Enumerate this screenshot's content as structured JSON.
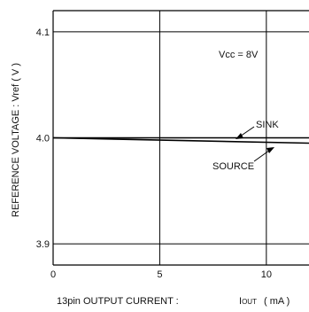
{
  "chart_data": {
    "type": "line",
    "title": "",
    "xlabel": "13pin  OUTPUT  CURRENT :",
    "xlabel_symbol": "I",
    "xlabel_subscript": "OUT",
    "xlabel_unit": "( mA )",
    "ylabel": "REFERENCE  VOLTAGE : Vref ( V )",
    "xlim": [
      0,
      12
    ],
    "ylim": [
      3.88,
      4.12
    ],
    "x_ticks": [
      0,
      5,
      10
    ],
    "x_tick_labels": [
      "0",
      "5",
      "10"
    ],
    "y_ticks": [
      3.9,
      4.0,
      4.1
    ],
    "y_tick_labels": [
      "3.9",
      "4.0",
      "4.1"
    ],
    "grid": true,
    "condition": "Vcc = 8V",
    "series": [
      {
        "name": "SINK",
        "x": [
          0,
          12
        ],
        "y": [
          4.0,
          4.0
        ]
      },
      {
        "name": "SOURCE",
        "x": [
          0,
          12
        ],
        "y": [
          4.0,
          3.995
        ]
      }
    ],
    "colors": {
      "line": "#000000",
      "grid": "#000000",
      "background": "#ffffff"
    }
  }
}
